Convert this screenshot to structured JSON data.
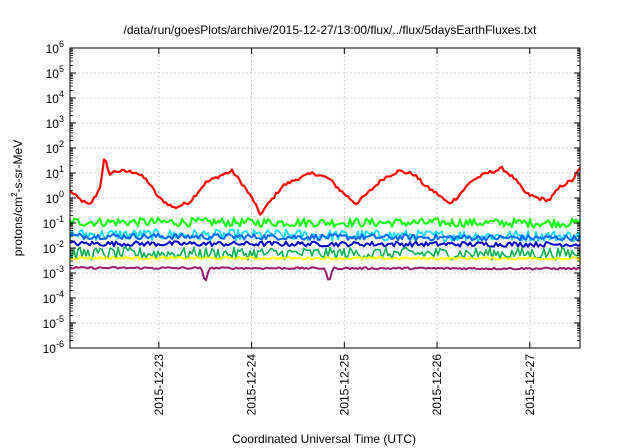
{
  "chart_data": {
    "type": "line",
    "title": "/data/run/goesPlots/archive/2015-12-27/13:00/flux/../flux/5daysEarthFluxes.txt",
    "xlabel": "Coordinated Universal Time (UTC)",
    "ylabel": {
      "base": "protons/cm",
      "sup": "2",
      "rest": "-s-sr-MeV"
    },
    "y_scale": "log",
    "ylim": [
      1e-06,
      1000000.0
    ],
    "y_ticks": [
      {
        "value": 1e-06,
        "base": "10",
        "exp": "-6"
      },
      {
        "value": 1e-05,
        "base": "10",
        "exp": "-5"
      },
      {
        "value": 0.0001,
        "base": "10",
        "exp": "-4"
      },
      {
        "value": 0.001,
        "base": "10",
        "exp": "-3"
      },
      {
        "value": 0.01,
        "base": "10",
        "exp": "-2"
      },
      {
        "value": 0.1,
        "base": "10",
        "exp": "-1"
      },
      {
        "value": 1,
        "base": "10",
        "exp": "0"
      },
      {
        "value": 10,
        "base": "10",
        "exp": "1"
      },
      {
        "value": 100,
        "base": "10",
        "exp": "2"
      },
      {
        "value": 1000,
        "base": "10",
        "exp": "3"
      },
      {
        "value": 10000,
        "base": "10",
        "exp": "4"
      },
      {
        "value": 100000,
        "base": "10",
        "exp": "5"
      },
      {
        "value": 1000000,
        "base": "10",
        "exp": "6"
      }
    ],
    "xlim": [
      "2015-12-22T01:00",
      "2015-12-27T13:00"
    ],
    "x_ticks": [
      {
        "value": "2015-12-23T00:00",
        "label": "2015-12-23"
      },
      {
        "value": "2015-12-24T00:00",
        "label": "2015-12-24"
      },
      {
        "value": "2015-12-25T00:00",
        "label": "2015-12-25"
      },
      {
        "value": "2015-12-26T00:00",
        "label": "2015-12-26"
      },
      {
        "value": "2015-12-27T00:00",
        "label": "2015-12-27"
      }
    ],
    "grid": true,
    "legend": "none",
    "series": [
      {
        "color": "#ff0000",
        "lineWidth": 2.2,
        "noise": 0.07,
        "spikes": [
          {
            "x": "2015-12-22T10:00",
            "y": 50
          }
        ],
        "points": [
          [
            "2015-12-22T01:00",
            2
          ],
          [
            "2015-12-22T03:00",
            1
          ],
          [
            "2015-12-22T06:00",
            0.5
          ],
          [
            "2015-12-22T08:00",
            1.5
          ],
          [
            "2015-12-22T10:00",
            8
          ],
          [
            "2015-12-22T13:00",
            12
          ],
          [
            "2015-12-22T18:00",
            11
          ],
          [
            "2015-12-22T21:00",
            5
          ],
          [
            "2015-12-23T00:00",
            1
          ],
          [
            "2015-12-23T04:00",
            0.4
          ],
          [
            "2015-12-23T08:00",
            0.7
          ],
          [
            "2015-12-23T12:00",
            4
          ],
          [
            "2015-12-23T16:00",
            8
          ],
          [
            "2015-12-23T19:00",
            12
          ],
          [
            "2015-12-23T22:00",
            3
          ],
          [
            "2015-12-24T01:00",
            0.6
          ],
          [
            "2015-12-24T02:00",
            0.2
          ],
          [
            "2015-12-24T04:00",
            0.5
          ],
          [
            "2015-12-24T08:00",
            3
          ],
          [
            "2015-12-24T12:00",
            6
          ],
          [
            "2015-12-24T16:00",
            10
          ],
          [
            "2015-12-24T20:00",
            6
          ],
          [
            "2015-12-24T23:00",
            2
          ],
          [
            "2015-12-25T03:00",
            0.6
          ],
          [
            "2015-12-25T06:00",
            1.5
          ],
          [
            "2015-12-25T10:00",
            6
          ],
          [
            "2015-12-25T14:00",
            12
          ],
          [
            "2015-12-25T18:00",
            9
          ],
          [
            "2015-12-25T21:00",
            3
          ],
          [
            "2015-12-26T00:00",
            1.5
          ],
          [
            "2015-12-26T03:00",
            0.6
          ],
          [
            "2015-12-26T05:00",
            1
          ],
          [
            "2015-12-26T09:00",
            5
          ],
          [
            "2015-12-26T13:00",
            10
          ],
          [
            "2015-12-26T17:00",
            15
          ],
          [
            "2015-12-26T20:00",
            6
          ],
          [
            "2015-12-26T23:00",
            1.5
          ],
          [
            "2015-12-27T02:00",
            1
          ],
          [
            "2015-12-27T05:00",
            0.8
          ],
          [
            "2015-12-27T08:00",
            3
          ],
          [
            "2015-12-27T11:00",
            5
          ],
          [
            "2015-12-27T13:00",
            15
          ]
        ]
      },
      {
        "color": "#00ff00",
        "lineWidth": 2,
        "noise": 0.18,
        "spikes": [],
        "points": [
          [
            "2015-12-22T01:00",
            0.11
          ],
          [
            "2015-12-27T13:00",
            0.1
          ]
        ]
      },
      {
        "color": "#00e0ff",
        "lineWidth": 1.8,
        "noise": 0.22,
        "spikes": [],
        "points": [
          [
            "2015-12-22T01:00",
            0.035
          ],
          [
            "2015-12-27T13:00",
            0.03
          ]
        ]
      },
      {
        "color": "#0066ff",
        "lineWidth": 2,
        "noise": 0.12,
        "spikes": [],
        "points": [
          [
            "2015-12-22T01:00",
            0.03
          ],
          [
            "2015-12-27T13:00",
            0.025
          ]
        ]
      },
      {
        "color": "#0000cc",
        "lineWidth": 2,
        "noise": 0.1,
        "spikes": [],
        "points": [
          [
            "2015-12-22T01:00",
            0.015
          ],
          [
            "2015-12-27T13:00",
            0.014
          ]
        ]
      },
      {
        "color": "#00b050",
        "lineWidth": 1.6,
        "noise": 0.25,
        "spikes": [],
        "points": [
          [
            "2015-12-22T01:00",
            0.006
          ],
          [
            "2015-12-27T13:00",
            0.006
          ]
        ]
      },
      {
        "color": "#ffff00",
        "lineWidth": 2,
        "noise": 0.05,
        "spikes": [],
        "points": [
          [
            "2015-12-22T01:00",
            0.004
          ],
          [
            "2015-12-27T13:00",
            0.0038
          ]
        ]
      },
      {
        "color": "#9b1b6e",
        "lineWidth": 2,
        "noise": 0.04,
        "spikes": [
          {
            "x": "2015-12-23T12:00",
            "y": 0.0004
          },
          {
            "x": "2015-12-24T20:00",
            "y": 0.0004
          }
        ],
        "points": [
          [
            "2015-12-22T01:00",
            0.0016
          ],
          [
            "2015-12-27T13:00",
            0.0015
          ]
        ]
      }
    ]
  }
}
